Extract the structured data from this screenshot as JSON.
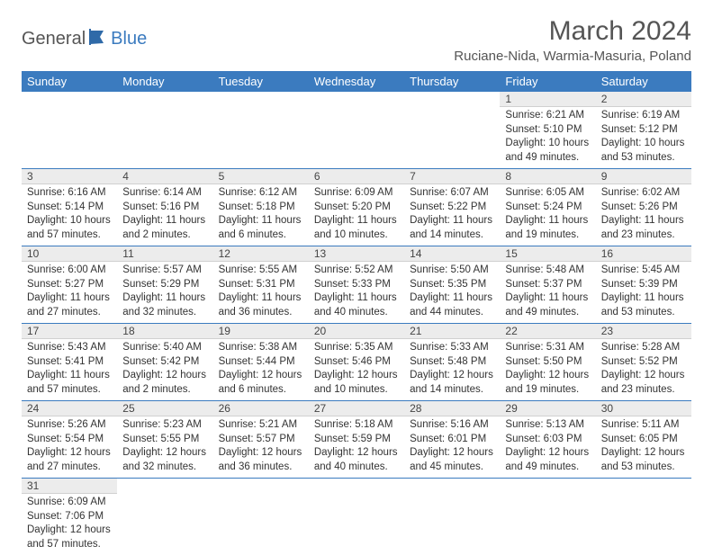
{
  "logo": {
    "general": "General",
    "blue": "Blue"
  },
  "title": "March 2024",
  "location": "Ruciane-Nida, Warmia-Masuria, Poland",
  "colors": {
    "header_bg": "#3b7bbf",
    "header_text": "#ffffff",
    "daynum_bg": "#ececec",
    "border": "#3b7bbf",
    "body_text": "#333333",
    "title_text": "#555555"
  },
  "weekdays": [
    "Sunday",
    "Monday",
    "Tuesday",
    "Wednesday",
    "Thursday",
    "Friday",
    "Saturday"
  ],
  "days": {
    "1": {
      "sunrise": "Sunrise: 6:21 AM",
      "sunset": "Sunset: 5:10 PM",
      "daylight": "Daylight: 10 hours and 49 minutes."
    },
    "2": {
      "sunrise": "Sunrise: 6:19 AM",
      "sunset": "Sunset: 5:12 PM",
      "daylight": "Daylight: 10 hours and 53 minutes."
    },
    "3": {
      "sunrise": "Sunrise: 6:16 AM",
      "sunset": "Sunset: 5:14 PM",
      "daylight": "Daylight: 10 hours and 57 minutes."
    },
    "4": {
      "sunrise": "Sunrise: 6:14 AM",
      "sunset": "Sunset: 5:16 PM",
      "daylight": "Daylight: 11 hours and 2 minutes."
    },
    "5": {
      "sunrise": "Sunrise: 6:12 AM",
      "sunset": "Sunset: 5:18 PM",
      "daylight": "Daylight: 11 hours and 6 minutes."
    },
    "6": {
      "sunrise": "Sunrise: 6:09 AM",
      "sunset": "Sunset: 5:20 PM",
      "daylight": "Daylight: 11 hours and 10 minutes."
    },
    "7": {
      "sunrise": "Sunrise: 6:07 AM",
      "sunset": "Sunset: 5:22 PM",
      "daylight": "Daylight: 11 hours and 14 minutes."
    },
    "8": {
      "sunrise": "Sunrise: 6:05 AM",
      "sunset": "Sunset: 5:24 PM",
      "daylight": "Daylight: 11 hours and 19 minutes."
    },
    "9": {
      "sunrise": "Sunrise: 6:02 AM",
      "sunset": "Sunset: 5:26 PM",
      "daylight": "Daylight: 11 hours and 23 minutes."
    },
    "10": {
      "sunrise": "Sunrise: 6:00 AM",
      "sunset": "Sunset: 5:27 PM",
      "daylight": "Daylight: 11 hours and 27 minutes."
    },
    "11": {
      "sunrise": "Sunrise: 5:57 AM",
      "sunset": "Sunset: 5:29 PM",
      "daylight": "Daylight: 11 hours and 32 minutes."
    },
    "12": {
      "sunrise": "Sunrise: 5:55 AM",
      "sunset": "Sunset: 5:31 PM",
      "daylight": "Daylight: 11 hours and 36 minutes."
    },
    "13": {
      "sunrise": "Sunrise: 5:52 AM",
      "sunset": "Sunset: 5:33 PM",
      "daylight": "Daylight: 11 hours and 40 minutes."
    },
    "14": {
      "sunrise": "Sunrise: 5:50 AM",
      "sunset": "Sunset: 5:35 PM",
      "daylight": "Daylight: 11 hours and 44 minutes."
    },
    "15": {
      "sunrise": "Sunrise: 5:48 AM",
      "sunset": "Sunset: 5:37 PM",
      "daylight": "Daylight: 11 hours and 49 minutes."
    },
    "16": {
      "sunrise": "Sunrise: 5:45 AM",
      "sunset": "Sunset: 5:39 PM",
      "daylight": "Daylight: 11 hours and 53 minutes."
    },
    "17": {
      "sunrise": "Sunrise: 5:43 AM",
      "sunset": "Sunset: 5:41 PM",
      "daylight": "Daylight: 11 hours and 57 minutes."
    },
    "18": {
      "sunrise": "Sunrise: 5:40 AM",
      "sunset": "Sunset: 5:42 PM",
      "daylight": "Daylight: 12 hours and 2 minutes."
    },
    "19": {
      "sunrise": "Sunrise: 5:38 AM",
      "sunset": "Sunset: 5:44 PM",
      "daylight": "Daylight: 12 hours and 6 minutes."
    },
    "20": {
      "sunrise": "Sunrise: 5:35 AM",
      "sunset": "Sunset: 5:46 PM",
      "daylight": "Daylight: 12 hours and 10 minutes."
    },
    "21": {
      "sunrise": "Sunrise: 5:33 AM",
      "sunset": "Sunset: 5:48 PM",
      "daylight": "Daylight: 12 hours and 14 minutes."
    },
    "22": {
      "sunrise": "Sunrise: 5:31 AM",
      "sunset": "Sunset: 5:50 PM",
      "daylight": "Daylight: 12 hours and 19 minutes."
    },
    "23": {
      "sunrise": "Sunrise: 5:28 AM",
      "sunset": "Sunset: 5:52 PM",
      "daylight": "Daylight: 12 hours and 23 minutes."
    },
    "24": {
      "sunrise": "Sunrise: 5:26 AM",
      "sunset": "Sunset: 5:54 PM",
      "daylight": "Daylight: 12 hours and 27 minutes."
    },
    "25": {
      "sunrise": "Sunrise: 5:23 AM",
      "sunset": "Sunset: 5:55 PM",
      "daylight": "Daylight: 12 hours and 32 minutes."
    },
    "26": {
      "sunrise": "Sunrise: 5:21 AM",
      "sunset": "Sunset: 5:57 PM",
      "daylight": "Daylight: 12 hours and 36 minutes."
    },
    "27": {
      "sunrise": "Sunrise: 5:18 AM",
      "sunset": "Sunset: 5:59 PM",
      "daylight": "Daylight: 12 hours and 40 minutes."
    },
    "28": {
      "sunrise": "Sunrise: 5:16 AM",
      "sunset": "Sunset: 6:01 PM",
      "daylight": "Daylight: 12 hours and 45 minutes."
    },
    "29": {
      "sunrise": "Sunrise: 5:13 AM",
      "sunset": "Sunset: 6:03 PM",
      "daylight": "Daylight: 12 hours and 49 minutes."
    },
    "30": {
      "sunrise": "Sunrise: 5:11 AM",
      "sunset": "Sunset: 6:05 PM",
      "daylight": "Daylight: 12 hours and 53 minutes."
    },
    "31": {
      "sunrise": "Sunrise: 6:09 AM",
      "sunset": "Sunset: 7:06 PM",
      "daylight": "Daylight: 12 hours and 57 minutes."
    }
  },
  "layout": [
    [
      null,
      null,
      null,
      null,
      null,
      "1",
      "2"
    ],
    [
      "3",
      "4",
      "5",
      "6",
      "7",
      "8",
      "9"
    ],
    [
      "10",
      "11",
      "12",
      "13",
      "14",
      "15",
      "16"
    ],
    [
      "17",
      "18",
      "19",
      "20",
      "21",
      "22",
      "23"
    ],
    [
      "24",
      "25",
      "26",
      "27",
      "28",
      "29",
      "30"
    ],
    [
      "31",
      null,
      null,
      null,
      null,
      null,
      null
    ]
  ]
}
